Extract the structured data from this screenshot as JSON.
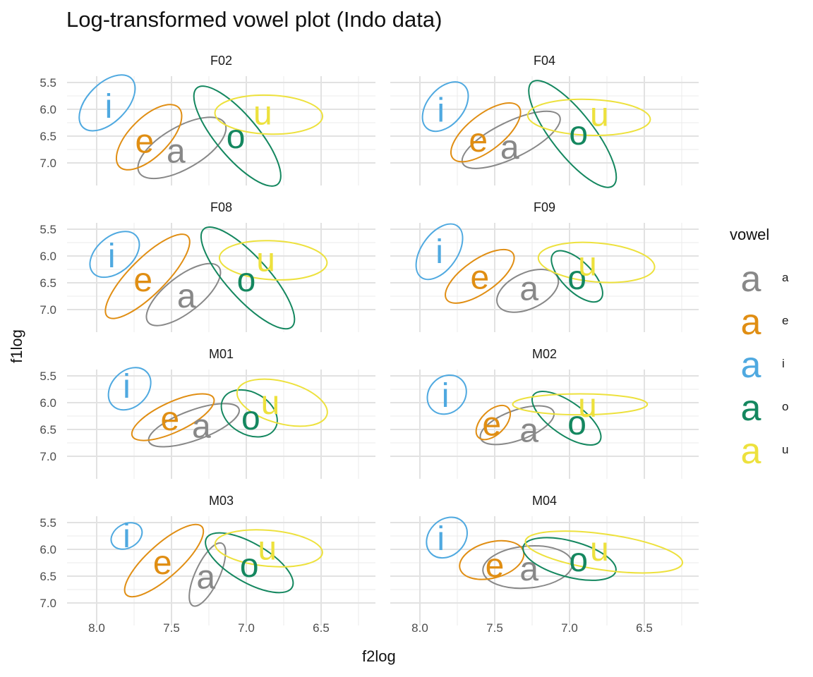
{
  "chart_data": {
    "type": "scatter",
    "title": "Log-transformed vowel plot (Indo data)",
    "xlabel": "f2log",
    "ylabel": "f1log",
    "x_reversed": true,
    "y_reversed": true,
    "xlim": [
      8.1,
      6.2
    ],
    "ylim": [
      5.4,
      7.25
    ],
    "x_ticks": [
      "8.0",
      "7.5",
      "7.0",
      "6.5"
    ],
    "y_ticks": [
      "5.5",
      "6.0",
      "6.5",
      "7.0"
    ],
    "grid": true,
    "legend": {
      "title": "vowel",
      "position": "right",
      "key_glyph": "a",
      "entries": [
        "a",
        "e",
        "i",
        "o",
        "u"
      ]
    },
    "colors": {
      "a": "#888888",
      "e": "#E08E13",
      "i": "#4FA9E0",
      "o": "#14875F",
      "u": "#EDE13D"
    },
    "facets": [
      {
        "label": "F02",
        "vowels": [
          {
            "vowel": "a",
            "x": 7.47,
            "y": 6.78,
            "ell": {
              "cx": 7.43,
              "cy": 6.72,
              "rx": 0.33,
              "ry": 0.14,
              "rot": -30
            }
          },
          {
            "vowel": "e",
            "x": 7.68,
            "y": 6.6,
            "ell": {
              "cx": 7.65,
              "cy": 6.52,
              "rx": 0.28,
              "ry": 0.13,
              "rot": -45
            }
          },
          {
            "vowel": "i",
            "x": 7.92,
            "y": 5.95,
            "ell": {
              "cx": 7.93,
              "cy": 5.88,
              "rx": 0.23,
              "ry": 0.13,
              "rot": -45
            }
          },
          {
            "vowel": "o",
            "x": 7.07,
            "y": 6.51,
            "ell": {
              "cx": 7.06,
              "cy": 6.5,
              "rx": 0.42,
              "ry": 0.14,
              "rot": 50
            }
          },
          {
            "vowel": "u",
            "x": 6.89,
            "y": 6.07,
            "ell": {
              "cx": 6.85,
              "cy": 6.1,
              "rx": 0.36,
              "ry": 0.13,
              "rot": 2
            }
          }
        ]
      },
      {
        "label": "F04",
        "vowels": [
          {
            "vowel": "a",
            "x": 7.4,
            "y": 6.71,
            "ell": {
              "cx": 7.39,
              "cy": 6.57,
              "rx": 0.36,
              "ry": 0.12,
              "rot": -26
            }
          },
          {
            "vowel": "e",
            "x": 7.61,
            "y": 6.58,
            "ell": {
              "cx": 7.56,
              "cy": 6.43,
              "rx": 0.28,
              "ry": 0.12,
              "rot": -38
            }
          },
          {
            "vowel": "i",
            "x": 7.86,
            "y": 6.02,
            "ell": {
              "cx": 7.83,
              "cy": 5.95,
              "rx": 0.19,
              "ry": 0.12,
              "rot": -50
            }
          },
          {
            "vowel": "o",
            "x": 6.94,
            "y": 6.45,
            "ell": {
              "cx": 6.98,
              "cy": 6.46,
              "rx": 0.44,
              "ry": 0.14,
              "rot": 52
            }
          },
          {
            "vowel": "u",
            "x": 6.8,
            "y": 6.1,
            "ell": {
              "cx": 6.87,
              "cy": 6.15,
              "rx": 0.41,
              "ry": 0.12,
              "rot": 2
            }
          }
        ]
      },
      {
        "label": "F08",
        "vowels": [
          {
            "vowel": "a",
            "x": 7.4,
            "y": 6.75,
            "ell": {
              "cx": 7.42,
              "cy": 6.72,
              "rx": 0.3,
              "ry": 0.12,
              "rot": -38
            }
          },
          {
            "vowel": "e",
            "x": 7.69,
            "y": 6.45,
            "ell": {
              "cx": 7.66,
              "cy": 6.38,
              "rx": 0.38,
              "ry": 0.12,
              "rot": -45
            }
          },
          {
            "vowel": "i",
            "x": 7.9,
            "y": 6.0,
            "ell": {
              "cx": 7.88,
              "cy": 5.97,
              "rx": 0.19,
              "ry": 0.12,
              "rot": -40
            }
          },
          {
            "vowel": "o",
            "x": 7.0,
            "y": 6.45,
            "ell": {
              "cx": 6.99,
              "cy": 6.41,
              "rx": 0.44,
              "ry": 0.14,
              "rot": 48
            }
          },
          {
            "vowel": "u",
            "x": 6.87,
            "y": 6.07,
            "ell": {
              "cx": 6.82,
              "cy": 6.08,
              "rx": 0.36,
              "ry": 0.13,
              "rot": 3
            }
          }
        ]
      },
      {
        "label": "F09",
        "vowels": [
          {
            "vowel": "a",
            "x": 7.27,
            "y": 6.61,
            "ell": {
              "cx": 7.28,
              "cy": 6.65,
              "rx": 0.22,
              "ry": 0.12,
              "rot": -25
            }
          },
          {
            "vowel": "e",
            "x": 7.6,
            "y": 6.4,
            "ell": {
              "cx": 7.6,
              "cy": 6.38,
              "rx": 0.27,
              "ry": 0.11,
              "rot": -35
            }
          },
          {
            "vowel": "i",
            "x": 7.87,
            "y": 5.92,
            "ell": {
              "cx": 7.87,
              "cy": 5.92,
              "rx": 0.21,
              "ry": 0.12,
              "rot": -55
            }
          },
          {
            "vowel": "o",
            "x": 6.95,
            "y": 6.41,
            "ell": {
              "cx": 6.95,
              "cy": 6.38,
              "rx": 0.22,
              "ry": 0.1,
              "rot": 45
            }
          },
          {
            "vowel": "u",
            "x": 6.88,
            "y": 6.15,
            "ell": {
              "cx": 6.82,
              "cy": 6.12,
              "rx": 0.39,
              "ry": 0.13,
              "rot": 5
            }
          }
        ]
      },
      {
        "label": "M01",
        "vowels": [
          {
            "vowel": "a",
            "x": 7.3,
            "y": 6.44,
            "ell": {
              "cx": 7.35,
              "cy": 6.42,
              "rx": 0.32,
              "ry": 0.1,
              "rot": -20
            }
          },
          {
            "vowel": "e",
            "x": 7.51,
            "y": 6.3,
            "ell": {
              "cx": 7.49,
              "cy": 6.27,
              "rx": 0.3,
              "ry": 0.1,
              "rot": -25
            }
          },
          {
            "vowel": "i",
            "x": 7.8,
            "y": 5.7,
            "ell": {
              "cx": 7.78,
              "cy": 5.74,
              "rx": 0.16,
              "ry": 0.12,
              "rot": -45
            }
          },
          {
            "vowel": "o",
            "x": 6.97,
            "y": 6.29,
            "ell": {
              "cx": 6.98,
              "cy": 6.2,
              "rx": 0.2,
              "ry": 0.14,
              "rot": 30
            }
          },
          {
            "vowel": "u",
            "x": 6.84,
            "y": 6.0,
            "ell": {
              "cx": 6.76,
              "cy": 6.0,
              "rx": 0.31,
              "ry": 0.14,
              "rot": 15
            }
          }
        ]
      },
      {
        "label": "M02",
        "vowels": [
          {
            "vowel": "a",
            "x": 7.27,
            "y": 6.52,
            "ell": {
              "cx": 7.35,
              "cy": 6.42,
              "rx": 0.26,
              "ry": 0.1,
              "rot": -20
            }
          },
          {
            "vowel": "e",
            "x": 7.52,
            "y": 6.4,
            "ell": {
              "cx": 7.51,
              "cy": 6.37,
              "rx": 0.14,
              "ry": 0.08,
              "rot": -45
            }
          },
          {
            "vowel": "i",
            "x": 7.83,
            "y": 5.87,
            "ell": {
              "cx": 7.82,
              "cy": 5.85,
              "rx": 0.14,
              "ry": 0.12,
              "rot": -45
            }
          },
          {
            "vowel": "o",
            "x": 6.95,
            "y": 6.38,
            "ell": {
              "cx": 7.02,
              "cy": 6.29,
              "rx": 0.27,
              "ry": 0.11,
              "rot": 35
            }
          },
          {
            "vowel": "u",
            "x": 6.88,
            "y": 6.05,
            "ell": {
              "cx": 6.93,
              "cy": 6.03,
              "rx": 0.45,
              "ry": 0.07,
              "rot": 0
            }
          }
        ]
      },
      {
        "label": "M03",
        "vowels": [
          {
            "vowel": "a",
            "x": 7.27,
            "y": 6.52,
            "ell": {
              "cx": 7.26,
              "cy": 6.47,
              "rx": 0.23,
              "ry": 0.08,
              "rot": -65
            }
          },
          {
            "vowel": "e",
            "x": 7.56,
            "y": 6.25,
            "ell": {
              "cx": 7.55,
              "cy": 6.21,
              "rx": 0.34,
              "ry": 0.11,
              "rot": -42
            }
          },
          {
            "vowel": "i",
            "x": 7.8,
            "y": 5.75,
            "ell": {
              "cx": 7.8,
              "cy": 5.75,
              "rx": 0.11,
              "ry": 0.08,
              "rot": -30
            }
          },
          {
            "vowel": "o",
            "x": 6.98,
            "y": 6.3,
            "ell": {
              "cx": 6.98,
              "cy": 6.25,
              "rx": 0.33,
              "ry": 0.13,
              "rot": 30
            }
          },
          {
            "vowel": "u",
            "x": 6.86,
            "y": 5.98,
            "ell": {
              "cx": 6.85,
              "cy": 5.98,
              "rx": 0.36,
              "ry": 0.12,
              "rot": 5
            }
          }
        ]
      },
      {
        "label": "M04",
        "vowels": [
          {
            "vowel": "a",
            "x": 7.27,
            "y": 6.37,
            "ell": {
              "cx": 7.28,
              "cy": 6.33,
              "rx": 0.3,
              "ry": 0.14,
              "rot": -5
            }
          },
          {
            "vowel": "e",
            "x": 7.5,
            "y": 6.3,
            "ell": {
              "cx": 7.52,
              "cy": 6.2,
              "rx": 0.22,
              "ry": 0.12,
              "rot": -15
            }
          },
          {
            "vowel": "i",
            "x": 7.86,
            "y": 5.8,
            "ell": {
              "cx": 7.82,
              "cy": 5.78,
              "rx": 0.15,
              "ry": 0.12,
              "rot": -45
            }
          },
          {
            "vowel": "o",
            "x": 6.94,
            "y": 6.2,
            "ell": {
              "cx": 7.0,
              "cy": 6.18,
              "rx": 0.32,
              "ry": 0.12,
              "rot": 15
            }
          },
          {
            "vowel": "u",
            "x": 6.8,
            "y": 6.0,
            "ell": {
              "cx": 6.77,
              "cy": 6.05,
              "rx": 0.53,
              "ry": 0.12,
              "rot": 8
            }
          }
        ]
      }
    ]
  }
}
